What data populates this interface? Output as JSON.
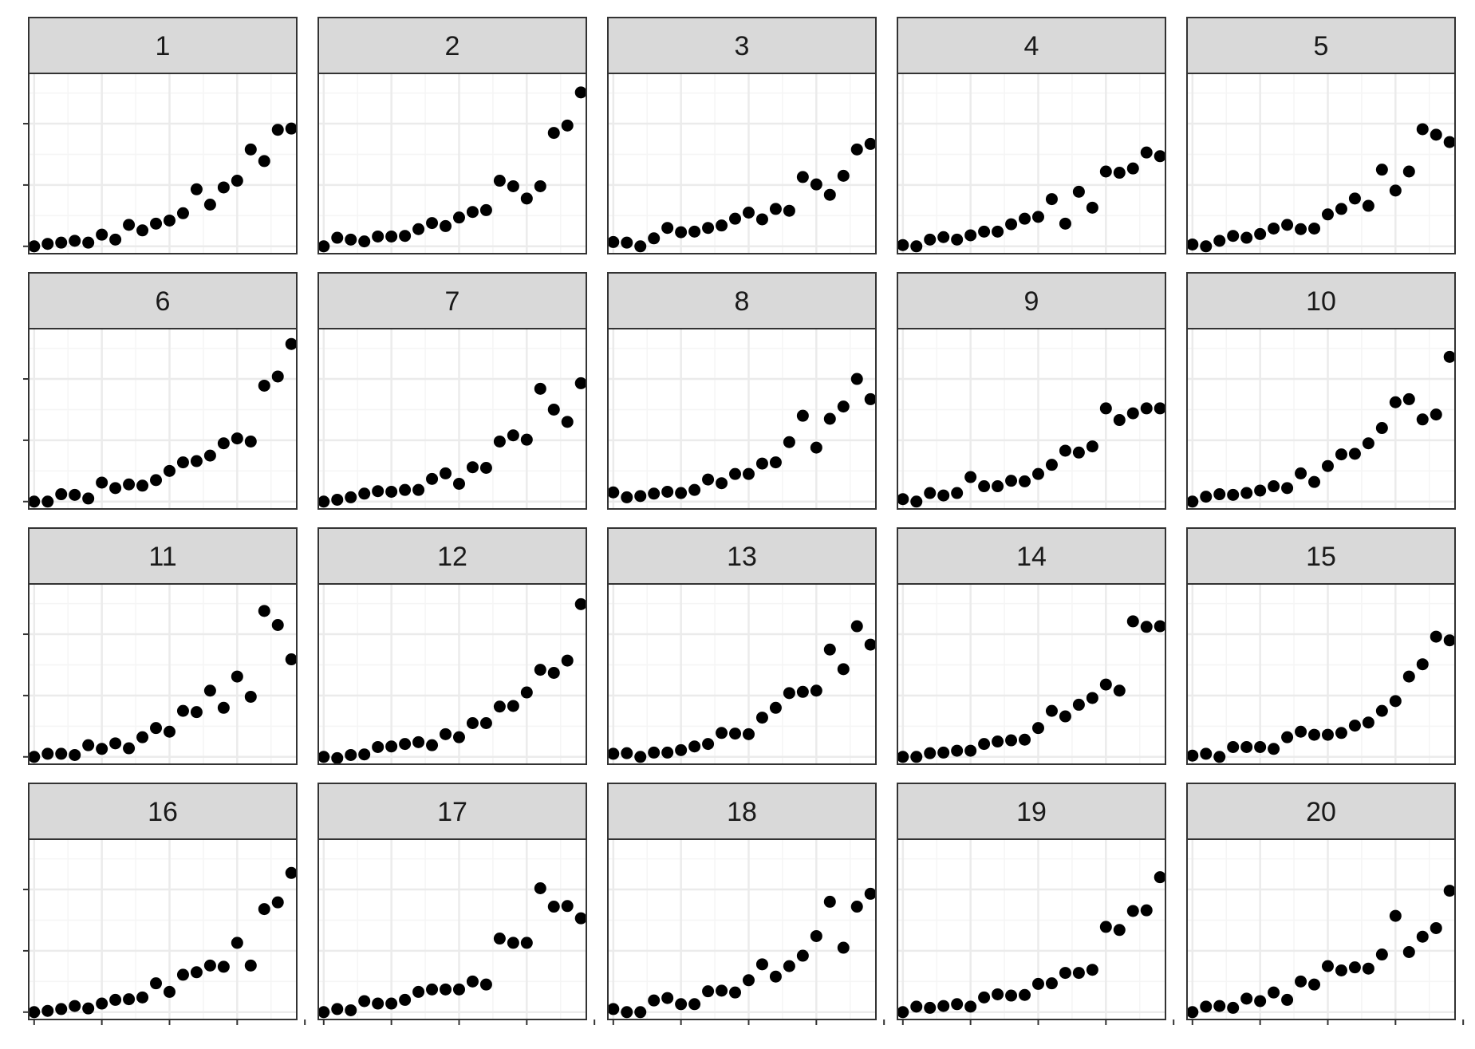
{
  "chart_data": {
    "type": "scatter",
    "layout": "facet_wrap",
    "ncol": 5,
    "nrow": 4,
    "title": "",
    "xlabel": "",
    "ylabel": "",
    "x_tick_labels_shown": false,
    "y_tick_labels_shown": false,
    "grid": true,
    "theme": "bw",
    "point_color": "#000000",
    "strip_fill": "#d9d9d9",
    "panel_border": "#333333",
    "grid_major": "#ebebeb",
    "grid_minor": "#f5f5f5",
    "x": [
      1,
      2,
      3,
      4,
      5,
      6,
      7,
      8,
      9,
      10,
      11,
      12,
      13,
      14,
      15,
      16,
      17,
      18,
      19,
      20
    ],
    "xlim": [
      0.6,
      20.4
    ],
    "ylim": [
      -0.12,
      2.82
    ],
    "x_ticks": [
      1,
      6,
      11,
      16,
      21
    ],
    "y_ticks": [
      0,
      1,
      2
    ],
    "panels": [
      {
        "label": "1",
        "values": [
          0.0,
          0.04,
          0.06,
          0.09,
          0.06,
          0.19,
          0.11,
          0.35,
          0.26,
          0.37,
          0.42,
          0.54,
          0.93,
          0.68,
          0.96,
          1.07,
          1.58,
          1.39,
          1.9,
          1.92
        ]
      },
      {
        "label": "2",
        "values": [
          0.0,
          0.14,
          0.11,
          0.08,
          0.16,
          0.16,
          0.17,
          0.28,
          0.38,
          0.33,
          0.47,
          0.56,
          0.59,
          1.07,
          0.98,
          0.78,
          0.98,
          1.85,
          1.97,
          2.51
        ]
      },
      {
        "label": "3",
        "values": [
          0.07,
          0.06,
          0.0,
          0.13,
          0.3,
          0.23,
          0.24,
          0.3,
          0.34,
          0.45,
          0.55,
          0.44,
          0.61,
          0.58,
          1.13,
          1.01,
          0.84,
          1.15,
          1.58,
          1.67
        ]
      },
      {
        "label": "4",
        "values": [
          0.02,
          0.0,
          0.11,
          0.15,
          0.11,
          0.18,
          0.24,
          0.24,
          0.36,
          0.45,
          0.48,
          0.77,
          0.37,
          0.89,
          0.63,
          1.22,
          1.2,
          1.27,
          1.53,
          1.47
        ]
      },
      {
        "label": "5",
        "values": [
          0.03,
          0.0,
          0.09,
          0.17,
          0.14,
          0.2,
          0.29,
          0.35,
          0.28,
          0.29,
          0.52,
          0.61,
          0.78,
          0.66,
          1.25,
          0.91,
          1.22,
          1.91,
          1.82,
          1.7
        ]
      },
      {
        "label": "6",
        "values": [
          0.0,
          0.0,
          0.12,
          0.11,
          0.05,
          0.31,
          0.22,
          0.28,
          0.26,
          0.35,
          0.5,
          0.64,
          0.66,
          0.75,
          0.95,
          1.03,
          0.98,
          1.89,
          2.04,
          2.57
        ]
      },
      {
        "label": "7",
        "values": [
          0.0,
          0.03,
          0.07,
          0.13,
          0.17,
          0.16,
          0.19,
          0.19,
          0.37,
          0.46,
          0.29,
          0.56,
          0.55,
          0.98,
          1.08,
          1.01,
          1.84,
          1.5,
          1.3,
          1.93
        ]
      },
      {
        "label": "8",
        "values": [
          0.15,
          0.07,
          0.09,
          0.13,
          0.16,
          0.14,
          0.19,
          0.36,
          0.3,
          0.45,
          0.45,
          0.62,
          0.64,
          0.97,
          1.4,
          0.88,
          1.35,
          1.55,
          2.0,
          1.67
        ]
      },
      {
        "label": "9",
        "values": [
          0.04,
          0.0,
          0.14,
          0.1,
          0.14,
          0.4,
          0.25,
          0.25,
          0.34,
          0.33,
          0.45,
          0.6,
          0.83,
          0.8,
          0.9,
          1.52,
          1.33,
          1.44,
          1.52,
          1.52
        ]
      },
      {
        "label": "10",
        "values": [
          0.0,
          0.08,
          0.12,
          0.11,
          0.14,
          0.18,
          0.25,
          0.22,
          0.46,
          0.32,
          0.58,
          0.77,
          0.78,
          0.95,
          1.2,
          1.62,
          1.67,
          1.34,
          1.42,
          2.36
        ]
      },
      {
        "label": "11",
        "values": [
          0.0,
          0.05,
          0.05,
          0.03,
          0.19,
          0.13,
          0.22,
          0.14,
          0.32,
          0.47,
          0.41,
          0.75,
          0.73,
          1.08,
          0.8,
          1.31,
          0.98,
          2.38,
          2.15,
          1.59
        ]
      },
      {
        "label": "12",
        "values": [
          0.0,
          -0.02,
          0.03,
          0.04,
          0.16,
          0.17,
          0.21,
          0.24,
          0.19,
          0.37,
          0.32,
          0.55,
          0.55,
          0.82,
          0.83,
          1.05,
          1.42,
          1.37,
          1.57,
          2.49
        ]
      },
      {
        "label": "13",
        "values": [
          0.05,
          0.06,
          0.0,
          0.07,
          0.07,
          0.11,
          0.17,
          0.21,
          0.39,
          0.38,
          0.37,
          0.64,
          0.8,
          1.04,
          1.06,
          1.08,
          1.75,
          1.43,
          2.13,
          1.83
        ]
      },
      {
        "label": "14",
        "values": [
          0.0,
          0.0,
          0.06,
          0.07,
          0.1,
          0.1,
          0.21,
          0.25,
          0.27,
          0.28,
          0.47,
          0.75,
          0.66,
          0.85,
          0.96,
          1.18,
          1.08,
          2.21,
          2.12,
          2.13
        ]
      },
      {
        "label": "15",
        "values": [
          0.02,
          0.05,
          0.0,
          0.16,
          0.16,
          0.16,
          0.13,
          0.32,
          0.41,
          0.36,
          0.36,
          0.39,
          0.51,
          0.56,
          0.75,
          0.91,
          1.31,
          1.51,
          1.96,
          1.9
        ]
      },
      {
        "label": "16",
        "values": [
          0.0,
          0.02,
          0.05,
          0.1,
          0.06,
          0.14,
          0.2,
          0.21,
          0.24,
          0.47,
          0.33,
          0.61,
          0.65,
          0.76,
          0.74,
          1.13,
          0.76,
          1.68,
          1.79,
          2.27
        ]
      },
      {
        "label": "17",
        "values": [
          0.0,
          0.05,
          0.03,
          0.18,
          0.14,
          0.14,
          0.2,
          0.33,
          0.37,
          0.37,
          0.37,
          0.5,
          0.45,
          1.2,
          1.13,
          1.13,
          2.02,
          1.72,
          1.73,
          1.53
        ]
      },
      {
        "label": "18",
        "values": [
          0.05,
          0.0,
          0.0,
          0.19,
          0.23,
          0.13,
          0.13,
          0.34,
          0.35,
          0.32,
          0.52,
          0.78,
          0.58,
          0.75,
          0.92,
          1.24,
          1.8,
          1.05,
          1.72,
          1.93
        ]
      },
      {
        "label": "19",
        "values": [
          0.0,
          0.09,
          0.07,
          0.1,
          0.13,
          0.09,
          0.24,
          0.29,
          0.27,
          0.28,
          0.46,
          0.47,
          0.64,
          0.64,
          0.69,
          1.39,
          1.34,
          1.65,
          1.66,
          2.2
        ]
      },
      {
        "label": "20",
        "values": [
          0.0,
          0.09,
          0.1,
          0.07,
          0.22,
          0.18,
          0.32,
          0.2,
          0.5,
          0.45,
          0.75,
          0.68,
          0.73,
          0.71,
          0.94,
          1.57,
          0.98,
          1.23,
          1.37,
          1.98
        ]
      }
    ]
  }
}
